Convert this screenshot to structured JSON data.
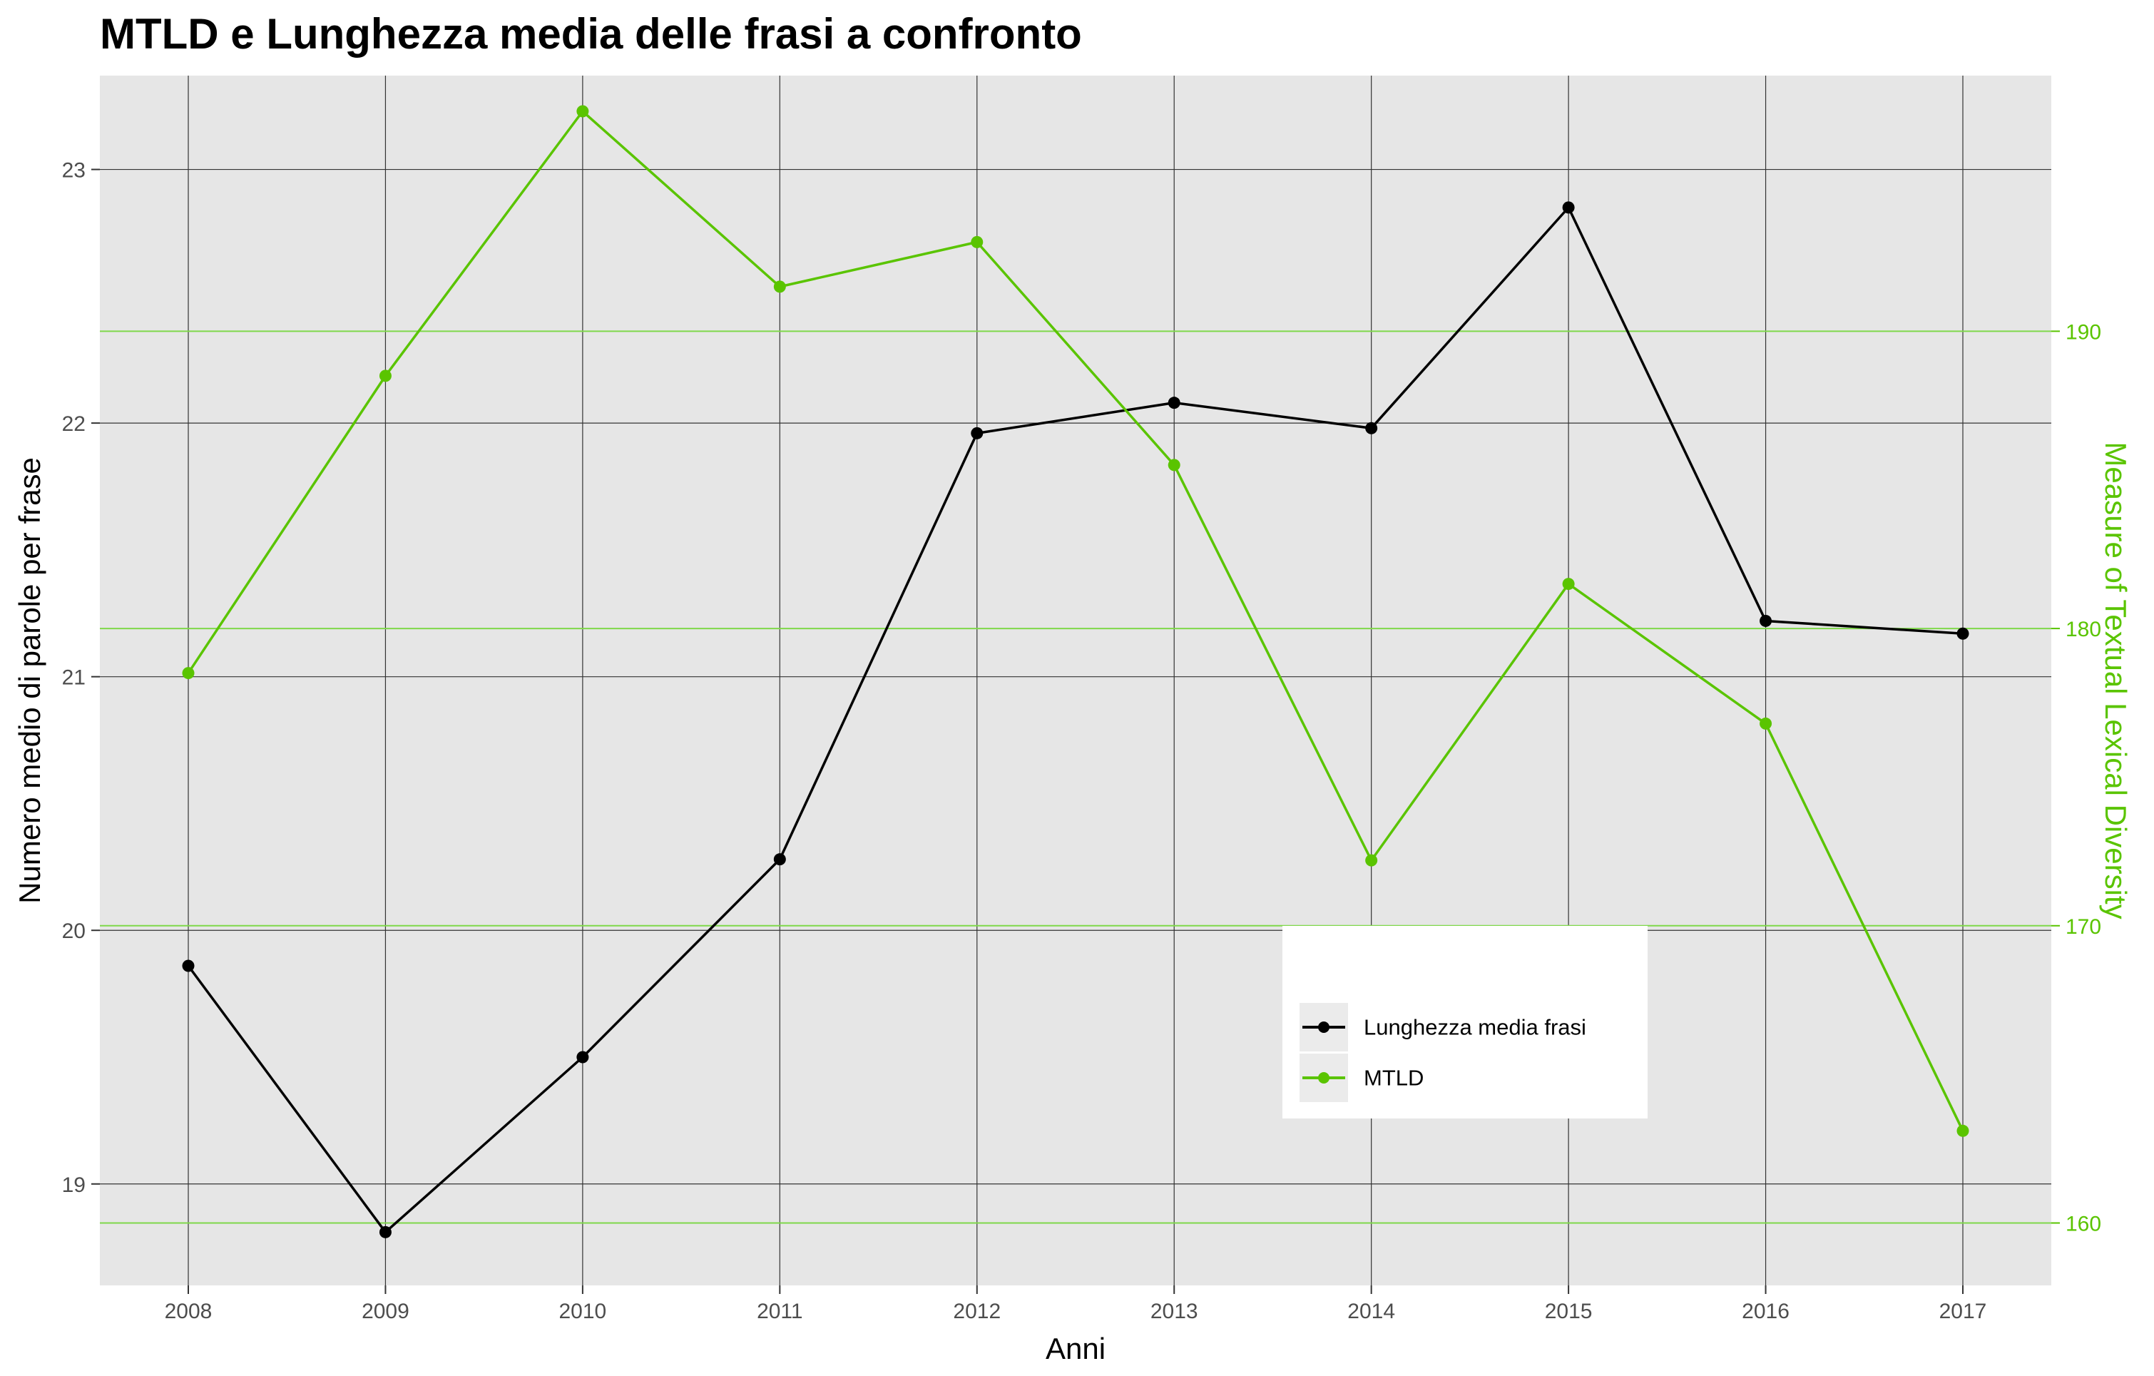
{
  "chart_data": {
    "type": "line",
    "title": "MTLD e Lunghezza media delle frasi a confronto",
    "xlabel": "Anni",
    "ylabel": "Numero medio di parole per frase",
    "y2label": "Measure of Textual Lexical Diversity",
    "categories": [
      "2008",
      "2009",
      "2010",
      "2011",
      "2012",
      "2013",
      "2014",
      "2015",
      "2016",
      "2017"
    ],
    "ylim": [
      18.6,
      23.37
    ],
    "y2lim": [
      157.9,
      198.6
    ],
    "yticks": [
      19,
      20,
      21,
      22,
      23
    ],
    "y2ticks": [
      160,
      170,
      180,
      190
    ],
    "grid": true,
    "legend_position": "bottom-right-inside",
    "series": [
      {
        "name": "Lunghezza media frasi",
        "axis": "left",
        "color": "#000000",
        "values": [
          19.86,
          18.81,
          19.5,
          20.28,
          21.96,
          22.08,
          21.98,
          22.85,
          21.22,
          21.17
        ]
      },
      {
        "name": "MTLD",
        "axis": "right",
        "color": "#5ac400",
        "values": [
          178.5,
          188.5,
          197.4,
          191.5,
          193.0,
          185.5,
          172.2,
          181.5,
          176.8,
          163.1
        ]
      }
    ]
  }
}
